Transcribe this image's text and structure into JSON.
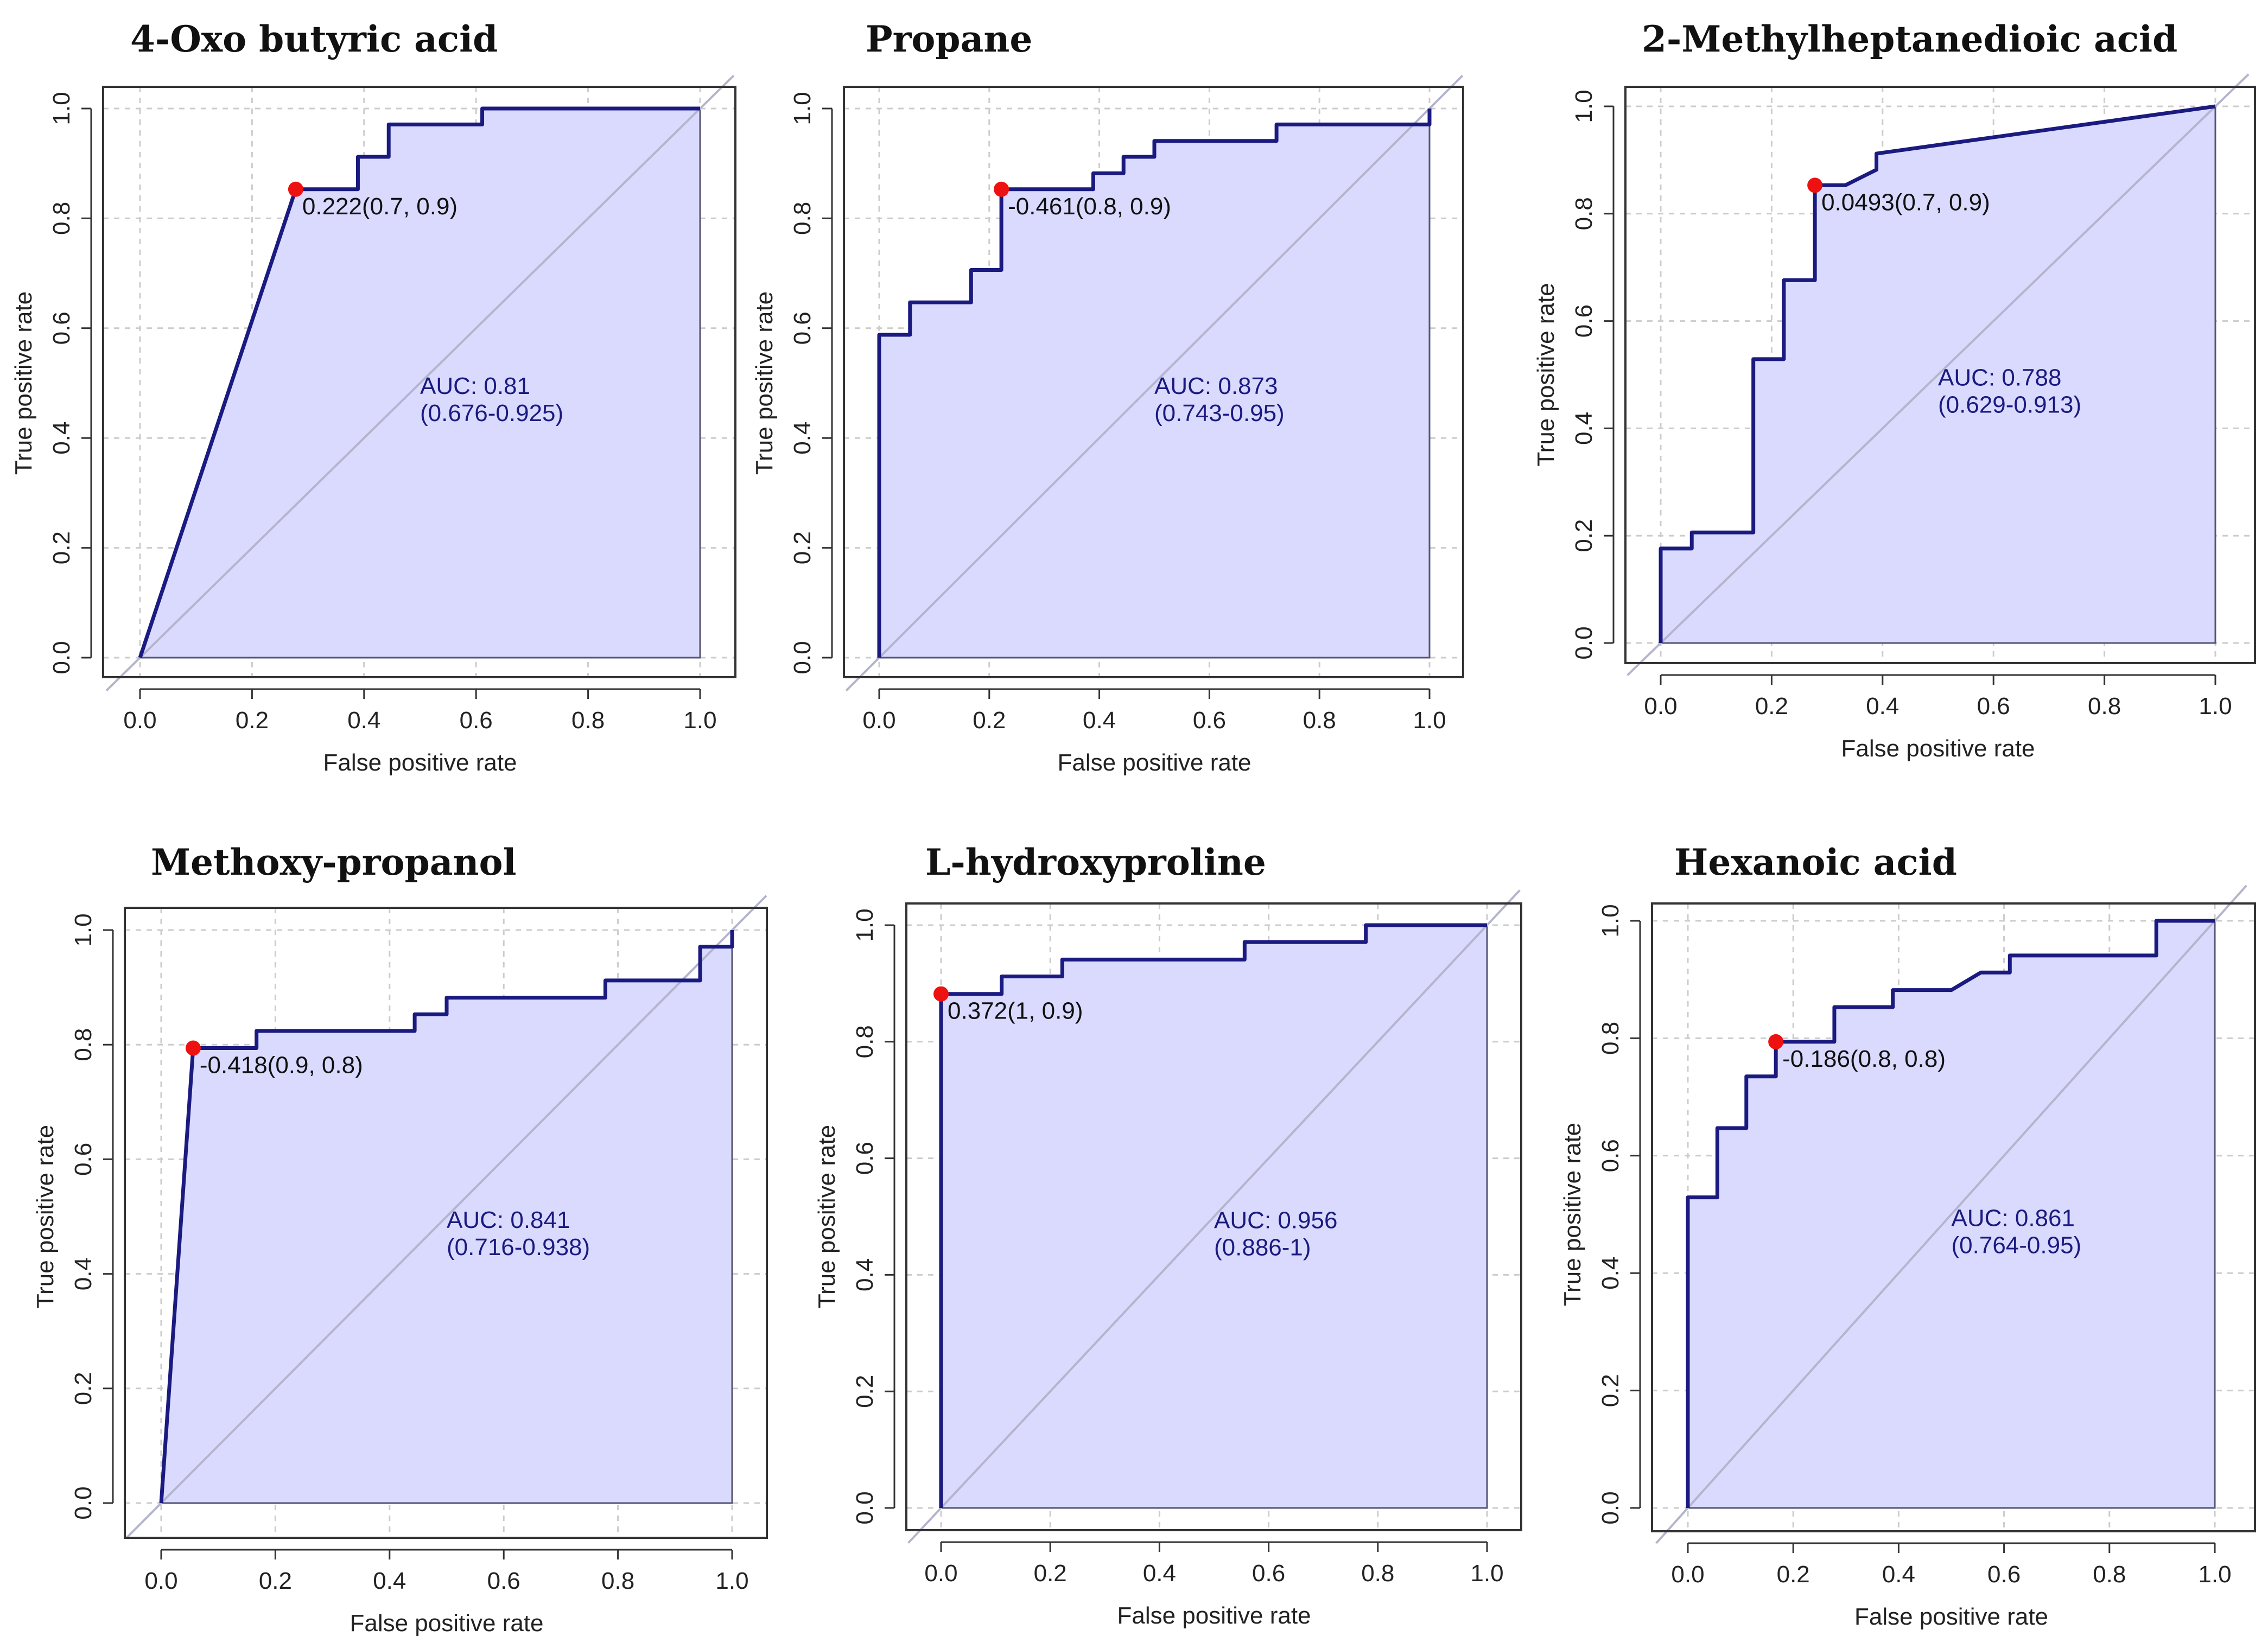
{
  "colors": {
    "curve": "#1a1a80",
    "fill": "#dadaff",
    "diagonal": "#b4b4cc",
    "grid": "#cccccc",
    "frame": "#333333",
    "point": "#ee1111"
  },
  "chart_data": [
    {
      "type": "line",
      "title": "4-Oxo butyric acid",
      "xlabel": "False positive rate",
      "ylabel": "True positive rate",
      "xlim": [
        0,
        1
      ],
      "ylim": [
        0,
        1
      ],
      "xticks": [
        "0.0",
        "0.2",
        "0.4",
        "0.6",
        "0.8",
        "1.0"
      ],
      "yticks": [
        "0.0",
        "0.2",
        "0.4",
        "0.6",
        "0.8",
        "1.0"
      ],
      "roc_x": [
        0,
        0.278,
        0.389,
        0.389,
        0.444,
        0.444,
        0.611,
        0.611,
        1.0
      ],
      "roc_y": [
        0,
        0.853,
        0.853,
        0.912,
        0.912,
        0.971,
        0.971,
        1.0,
        1.0
      ],
      "cutoff_point": [
        0.278,
        0.853
      ],
      "cutoff_label": "0.222(0.7, 0.9)",
      "auc_label": "AUC: 0.81",
      "ci_label": "(0.676-0.925)"
    },
    {
      "type": "line",
      "title": "Propane",
      "xlabel": "False positive rate",
      "ylabel": "True positive rate",
      "xlim": [
        0,
        1
      ],
      "ylim": [
        0,
        1
      ],
      "xticks": [
        "0.0",
        "0.2",
        "0.4",
        "0.6",
        "0.8",
        "1.0"
      ],
      "yticks": [
        "0.0",
        "0.2",
        "0.4",
        "0.6",
        "0.8",
        "1.0"
      ],
      "roc_x": [
        0,
        0,
        0.056,
        0.056,
        0.167,
        0.167,
        0.222,
        0.222,
        0.389,
        0.389,
        0.444,
        0.444,
        0.5,
        0.5,
        0.722,
        0.722,
        1.0,
        1.0
      ],
      "roc_y": [
        0,
        0.588,
        0.588,
        0.647,
        0.647,
        0.706,
        0.706,
        0.853,
        0.853,
        0.882,
        0.882,
        0.912,
        0.912,
        0.941,
        0.941,
        0.971,
        0.971,
        1.0
      ],
      "cutoff_point": [
        0.222,
        0.853
      ],
      "cutoff_label": "-0.461(0.8, 0.9)",
      "auc_label": "AUC: 0.873",
      "ci_label": "(0.743-0.95)"
    },
    {
      "type": "line",
      "title": "2-Methylheptanedioic acid",
      "xlabel": "False positive rate",
      "ylabel": "True positive rate",
      "xlim": [
        0,
        1
      ],
      "ylim": [
        0,
        1
      ],
      "xticks": [
        "0.0",
        "0.2",
        "0.4",
        "0.6",
        "0.8",
        "1.0"
      ],
      "yticks": [
        "0.0",
        "0.2",
        "0.4",
        "0.6",
        "0.8",
        "1.0"
      ],
      "roc_x": [
        0,
        0,
        0.056,
        0.056,
        0.167,
        0.167,
        0.222,
        0.222,
        0.278,
        0.278,
        0.333,
        0.389,
        0.389,
        1.0
      ],
      "roc_y": [
        0,
        0.176,
        0.176,
        0.206,
        0.206,
        0.529,
        0.529,
        0.676,
        0.676,
        0.853,
        0.853,
        0.882,
        0.912,
        1.0
      ],
      "cutoff_point": [
        0.278,
        0.853
      ],
      "cutoff_label": "0.0493(0.7, 0.9)",
      "auc_label": "AUC: 0.788",
      "ci_label": "(0.629-0.913)"
    },
    {
      "type": "line",
      "title": "Methoxy-propanol",
      "xlabel": "False positive rate",
      "ylabel": "True positive rate",
      "xlim": [
        0,
        1
      ],
      "ylim": [
        0,
        1
      ],
      "xticks": [
        "0.0",
        "0.2",
        "0.4",
        "0.6",
        "0.8",
        "1.0"
      ],
      "yticks": [
        "0.0",
        "0.2",
        "0.4",
        "0.6",
        "0.8",
        "1.0"
      ],
      "roc_x": [
        0,
        0.056,
        0.167,
        0.167,
        0.444,
        0.444,
        0.5,
        0.5,
        0.778,
        0.778,
        0.944,
        0.944,
        1.0,
        1.0
      ],
      "roc_y": [
        0,
        0.794,
        0.794,
        0.824,
        0.824,
        0.853,
        0.853,
        0.882,
        0.882,
        0.912,
        0.912,
        0.971,
        0.971,
        1.0
      ],
      "cutoff_point": [
        0.056,
        0.794
      ],
      "cutoff_label": "-0.418(0.9, 0.8)",
      "auc_label": "AUC: 0.841",
      "ci_label": "(0.716-0.938)"
    },
    {
      "type": "line",
      "title": "L-hydroxyproline",
      "xlabel": "False positive rate",
      "ylabel": "True positive rate",
      "xlim": [
        0,
        1
      ],
      "ylim": [
        0,
        1
      ],
      "xticks": [
        "0.0",
        "0.2",
        "0.4",
        "0.6",
        "0.8",
        "1.0"
      ],
      "yticks": [
        "0.0",
        "0.2",
        "0.4",
        "0.6",
        "0.8",
        "1.0"
      ],
      "roc_x": [
        0,
        0,
        0.111,
        0.111,
        0.222,
        0.222,
        0.556,
        0.556,
        0.778,
        0.778,
        1.0
      ],
      "roc_y": [
        0,
        0.882,
        0.882,
        0.912,
        0.912,
        0.941,
        0.941,
        0.971,
        0.971,
        1.0,
        1.0
      ],
      "cutoff_point": [
        0,
        0.882
      ],
      "cutoff_label": "0.372(1, 0.9)",
      "auc_label": "AUC: 0.956",
      "ci_label": "(0.886-1)"
    },
    {
      "type": "line",
      "title": "Hexanoic acid",
      "xlabel": "False positive rate",
      "ylabel": "True positive rate",
      "xlim": [
        0,
        1
      ],
      "ylim": [
        0,
        1
      ],
      "xticks": [
        "0.0",
        "0.2",
        "0.4",
        "0.6",
        "0.8",
        "1.0"
      ],
      "yticks": [
        "0.0",
        "0.2",
        "0.4",
        "0.6",
        "0.8",
        "1.0"
      ],
      "roc_x": [
        0,
        0,
        0.056,
        0.056,
        0.111,
        0.111,
        0.167,
        0.167,
        0.278,
        0.278,
        0.389,
        0.389,
        0.5,
        0.556,
        0.556,
        0.611,
        0.611,
        0.889,
        0.889,
        1.0
      ],
      "roc_y": [
        0,
        0.529,
        0.529,
        0.647,
        0.647,
        0.735,
        0.735,
        0.794,
        0.794,
        0.853,
        0.853,
        0.882,
        0.882,
        0.912,
        0.912,
        0.912,
        0.941,
        0.941,
        1.0,
        1.0
      ],
      "cutoff_point": [
        0.167,
        0.794
      ],
      "cutoff_label": "-0.186(0.8, 0.8)",
      "auc_label": "AUC: 0.861",
      "ci_label": "(0.764-0.95)"
    }
  ]
}
